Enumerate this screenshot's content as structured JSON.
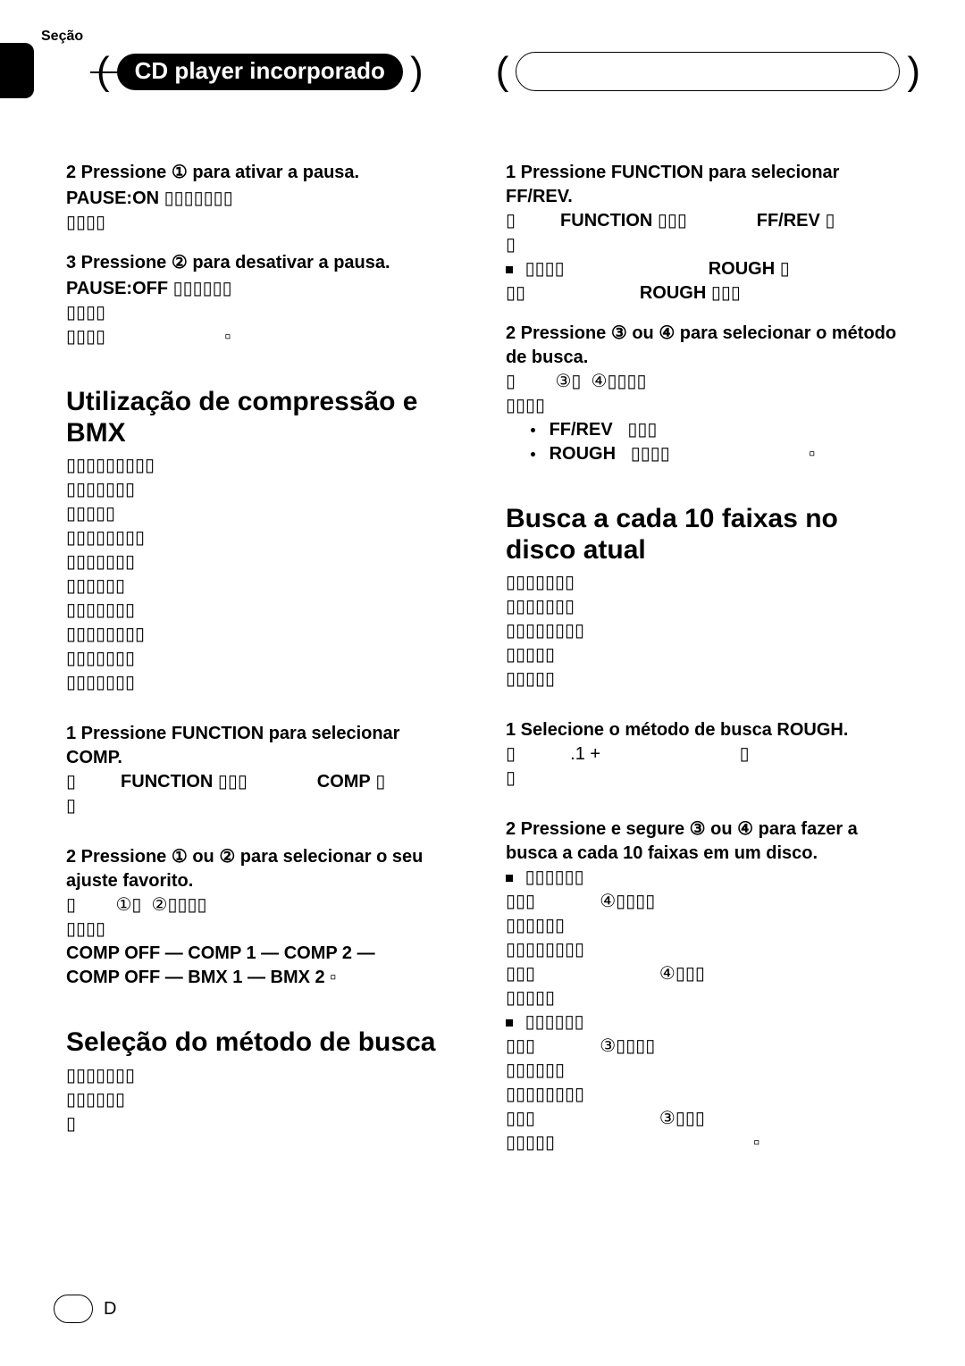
{
  "section_label": "Seção",
  "chapter_title": "CD player incorporado",
  "left": {
    "step2_line": "2    Pressione ① para ativar a pausa.",
    "step2_sub": "PAUSE:ON",
    "step3_line": "3    Pressione ② para desativar a pausa.",
    "step3_sub": "PAUSE:OFF",
    "heading_comp": "Utilização de compressão e BMX",
    "comp_step1": "1    Pressione FUNCTION para selecionar COMP.",
    "comp_step1_sub_a": "FUNCTION",
    "comp_step1_sub_b": "COMP",
    "comp_step2": "2    Pressione ① ou ② para selecionar o seu ajuste favorito.",
    "comp_options_a": "COMP OFF — COMP 1 — COMP 2 —",
    "comp_options_b": "COMP OFF — BMX 1 — BMX 2",
    "heading_search": "Seleção do método de busca"
  },
  "right": {
    "step1": "1    Pressione FUNCTION para selecionar FF/REV.",
    "step1_sub_a": "FUNCTION",
    "step1_sub_b": "FF/REV",
    "step1_note_a": "ROUGH",
    "step1_note_b": "ROUGH",
    "step2": "2    Pressione ③ ou ④ para selecionar o método de busca.",
    "step2_bullet1": "FF/REV",
    "step2_bullet2": "ROUGH",
    "heading_10": "Busca a cada 10 faixas no disco atual",
    "ten_step1": "1    Selecione o método de busca ROUGH.",
    "ten_step1_sub": ".1        +",
    "ten_step2": "2    Pressione e segure ③ ou ④ para fazer a busca a cada 10 faixas em um disco."
  },
  "footer_d": "D",
  "colors": {
    "fg": "#000000",
    "bg": "#ffffff"
  }
}
